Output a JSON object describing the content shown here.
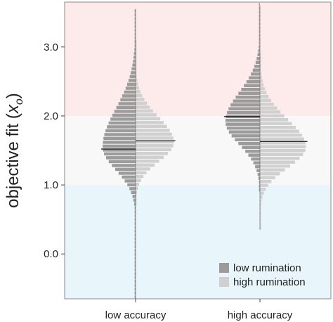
{
  "chart_data": {
    "type": "violin",
    "ylabel_main": "objective fit (",
    "ylabel_var": "x",
    "ylabel_sub": "o",
    "ylabel_close": ")",
    "ylim": [
      -0.65,
      3.65
    ],
    "yticks": [
      0.0,
      1.0,
      2.0,
      3.0
    ],
    "ytick_labels": [
      "0.0",
      "1.0",
      "2.0",
      "3.0"
    ],
    "categories": [
      "low accuracy",
      "high accuracy"
    ],
    "bands": [
      {
        "from": 2.0,
        "to": 3.65,
        "color": "#fdeaea"
      },
      {
        "from": 1.0,
        "to": 2.0,
        "color": "#f8f8f8"
      },
      {
        "from": -0.65,
        "to": 1.0,
        "color": "#e8f6fc"
      }
    ],
    "series": [
      {
        "name": "low rumination",
        "color": "#9b9b9b",
        "side": "left"
      },
      {
        "name": "high rumination",
        "color": "#d0d0d0",
        "side": "right"
      }
    ],
    "violins": [
      {
        "category": "low accuracy",
        "left": {
          "mean": 1.52,
          "peak": 1.55,
          "width_sd_below": 0.33,
          "width_sd_above": 0.55,
          "halfwidth_ratio": 0.86,
          "min": -0.65,
          "max": 3.55
        },
        "right": {
          "mean": 1.64,
          "peak": 1.62,
          "width_sd_below": 0.28,
          "width_sd_above": 0.36,
          "halfwidth_ratio": 1.0,
          "min": 0.7,
          "max": 3.1
        }
      },
      {
        "category": "high accuracy",
        "left": {
          "mean": 1.99,
          "peak": 1.92,
          "width_sd_below": 0.33,
          "width_sd_above": 0.42,
          "halfwidth_ratio": 0.9,
          "min": 0.9,
          "max": 3.6
        },
        "right": {
          "mean": 1.63,
          "peak": 1.55,
          "width_sd_below": 0.3,
          "width_sd_above": 0.4,
          "halfwidth_ratio": 1.2,
          "min": 0.35,
          "max": 2.9
        }
      }
    ],
    "legend_position": "bottom-right"
  }
}
